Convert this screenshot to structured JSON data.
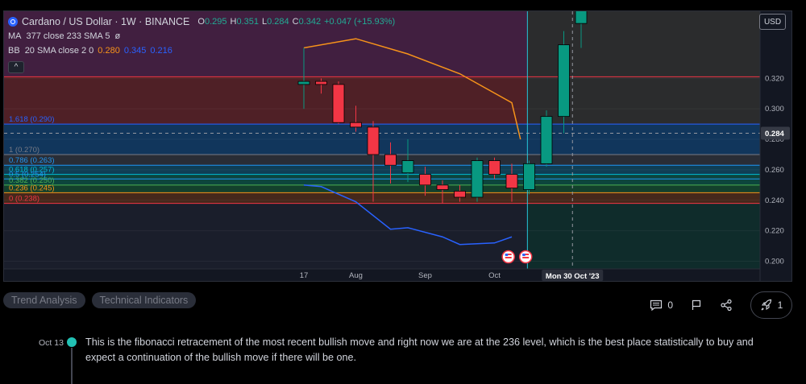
{
  "legend": {
    "title": "Cardano / US Dollar · 1W · BINANCE",
    "ohlc": {
      "o_label": "O",
      "o": "0.295",
      "h_label": "H",
      "h": "0.351",
      "l_label": "L",
      "l": "0.284",
      "c_label": "C",
      "c": "0.342",
      "change": "+0.047 (+15.93%)"
    },
    "ma": {
      "label": "MA",
      "params": "377 close 233 SMA 5",
      "value": "ø"
    },
    "bb": {
      "label": "BB",
      "params": "20 SMA close 2 0",
      "v1": "0.280",
      "v2": "0.345",
      "v3": "0.216"
    },
    "collapse_glyph": "^"
  },
  "currency": "USD",
  "chart_data": {
    "type": "candlestick",
    "ylim": [
      0.195,
      0.364
    ],
    "price_ticks": [
      0.2,
      0.22,
      0.24,
      0.26,
      0.28,
      0.3,
      0.32
    ],
    "current_price": "0.284",
    "crosshair_date": "Mon 30 Oct '23",
    "time_labels": [
      {
        "label": "17",
        "week": 0
      },
      {
        "label": "Aug",
        "week": 3
      },
      {
        "label": "Sep",
        "week": 7
      },
      {
        "label": "Oct",
        "week": 11
      }
    ],
    "candles": [
      {
        "o": 0.316,
        "h": 0.34,
        "l": 0.3,
        "c": 0.318
      },
      {
        "o": 0.318,
        "h": 0.32,
        "l": 0.31,
        "c": 0.316
      },
      {
        "o": 0.316,
        "h": 0.318,
        "l": 0.29,
        "c": 0.291
      },
      {
        "o": 0.291,
        "h": 0.302,
        "l": 0.285,
        "c": 0.288
      },
      {
        "o": 0.288,
        "h": 0.292,
        "l": 0.239,
        "c": 0.27
      },
      {
        "o": 0.27,
        "h": 0.278,
        "l": 0.251,
        "c": 0.263
      },
      {
        "o": 0.258,
        "h": 0.28,
        "l": 0.252,
        "c": 0.266
      },
      {
        "o": 0.257,
        "h": 0.262,
        "l": 0.243,
        "c": 0.25
      },
      {
        "o": 0.25,
        "h": 0.253,
        "l": 0.238,
        "c": 0.247
      },
      {
        "o": 0.246,
        "h": 0.25,
        "l": 0.239,
        "c": 0.242
      },
      {
        "o": 0.242,
        "h": 0.268,
        "l": 0.239,
        "c": 0.266
      },
      {
        "o": 0.266,
        "h": 0.268,
        "l": 0.254,
        "c": 0.257
      },
      {
        "o": 0.257,
        "h": 0.264,
        "l": 0.239,
        "c": 0.248
      },
      {
        "o": 0.247,
        "h": 0.266,
        "l": 0.244,
        "c": 0.264
      },
      {
        "o": 0.264,
        "h": 0.299,
        "l": 0.262,
        "c": 0.295
      },
      {
        "o": 0.295,
        "h": 0.351,
        "l": 0.284,
        "c": 0.342
      },
      {
        "o": 0.356,
        "h": 0.376,
        "l": 0.34,
        "c": 0.37
      }
    ],
    "ma_line": [
      [
        0,
        0.34
      ],
      [
        3,
        0.346
      ],
      [
        6,
        0.336
      ],
      [
        9,
        0.323
      ],
      [
        12,
        0.304
      ],
      [
        12.5,
        0.28
      ]
    ],
    "bb_lower_line": [
      [
        0,
        0.25
      ],
      [
        1,
        0.249
      ],
      [
        3,
        0.239
      ],
      [
        5,
        0.221
      ],
      [
        6,
        0.222
      ],
      [
        8,
        0.216
      ],
      [
        9,
        0.211
      ],
      [
        11,
        0.212
      ],
      [
        12,
        0.216
      ]
    ],
    "fib_levels": [
      {
        "label": "1.618 (0.290)",
        "price": 0.29,
        "color": "#2962ff"
      },
      {
        "label": "1 (0.270)",
        "price": 0.27,
        "color": "#787b86"
      },
      {
        "label": "0.786 (0.263)",
        "price": 0.263,
        "color": "#2196f3"
      },
      {
        "label": "0.618 (0.257)",
        "price": 0.257,
        "color": "#00bcd4"
      },
      {
        "label": "0.5 (0.254)",
        "price": 0.254,
        "color": "#2196f3"
      },
      {
        "label": "0.382 (0.250)",
        "price": 0.25,
        "color": "#4caf50"
      },
      {
        "label": "0.236 (0.245)",
        "price": 0.245,
        "color": "#f7931a"
      },
      {
        "label": "0 (0.238)",
        "price": 0.238,
        "color": "#f23645"
      }
    ],
    "resistance_price": 0.321,
    "marker_weeks": [
      11.8,
      12.8
    ]
  },
  "tags": [
    "Trend Analysis",
    "Technical Indicators"
  ],
  "actions": {
    "comments": "0",
    "boosts": "1"
  },
  "update": {
    "date": "Oct 13",
    "text": "This is the fibonacci retracement of the most recent bullish move and right now we are at the 236 level, which is the best place statistically to buy and expect a continuation of the bullish move if there will be one."
  }
}
